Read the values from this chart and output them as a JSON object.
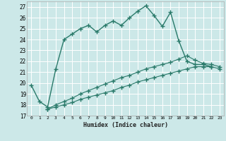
{
  "xlabel": "Humidex (Indice chaleur)",
  "ylabel": "",
  "background_color": "#cce8e8",
  "grid_color": "#ffffff",
  "line_color": "#2a7a6a",
  "xlim": [
    -0.5,
    23.5
  ],
  "ylim": [
    17,
    27.5
  ],
  "yticks": [
    17,
    18,
    19,
    20,
    21,
    22,
    23,
    24,
    25,
    26,
    27
  ],
  "xticks": [
    0,
    1,
    2,
    3,
    4,
    5,
    6,
    7,
    8,
    9,
    10,
    11,
    12,
    13,
    14,
    15,
    16,
    17,
    18,
    19,
    20,
    21,
    22,
    23
  ],
  "line1_x": [
    0,
    1,
    2,
    3,
    4,
    5,
    6,
    7,
    8,
    9,
    10,
    11,
    12,
    13,
    14,
    15,
    16,
    17,
    18,
    19,
    20,
    21,
    22
  ],
  "line1_y": [
    19.8,
    18.3,
    17.8,
    21.3,
    24.0,
    24.5,
    25.0,
    25.3,
    24.7,
    25.3,
    25.7,
    25.3,
    26.0,
    26.6,
    27.1,
    26.2,
    25.2,
    26.5,
    23.9,
    22.0,
    21.7,
    21.7,
    21.5
  ],
  "line2_x": [
    2,
    3,
    4,
    5,
    6,
    7,
    8,
    9,
    10,
    11,
    12,
    13,
    14,
    15,
    16,
    17,
    18,
    19,
    20,
    21,
    22,
    23
  ],
  "line2_y": [
    17.6,
    18.0,
    18.3,
    18.6,
    19.0,
    19.3,
    19.6,
    19.9,
    20.2,
    20.5,
    20.7,
    21.0,
    21.3,
    21.5,
    21.7,
    21.9,
    22.2,
    22.5,
    22.1,
    21.8,
    21.7,
    21.5
  ],
  "line3_x": [
    2,
    3,
    4,
    5,
    6,
    7,
    8,
    9,
    10,
    11,
    12,
    13,
    14,
    15,
    16,
    17,
    18,
    19,
    20,
    21,
    22,
    23
  ],
  "line3_y": [
    17.6,
    17.8,
    18.0,
    18.2,
    18.5,
    18.7,
    18.9,
    19.1,
    19.3,
    19.6,
    19.8,
    20.1,
    20.3,
    20.5,
    20.7,
    20.9,
    21.1,
    21.3,
    21.5,
    21.5,
    21.5,
    21.3
  ]
}
